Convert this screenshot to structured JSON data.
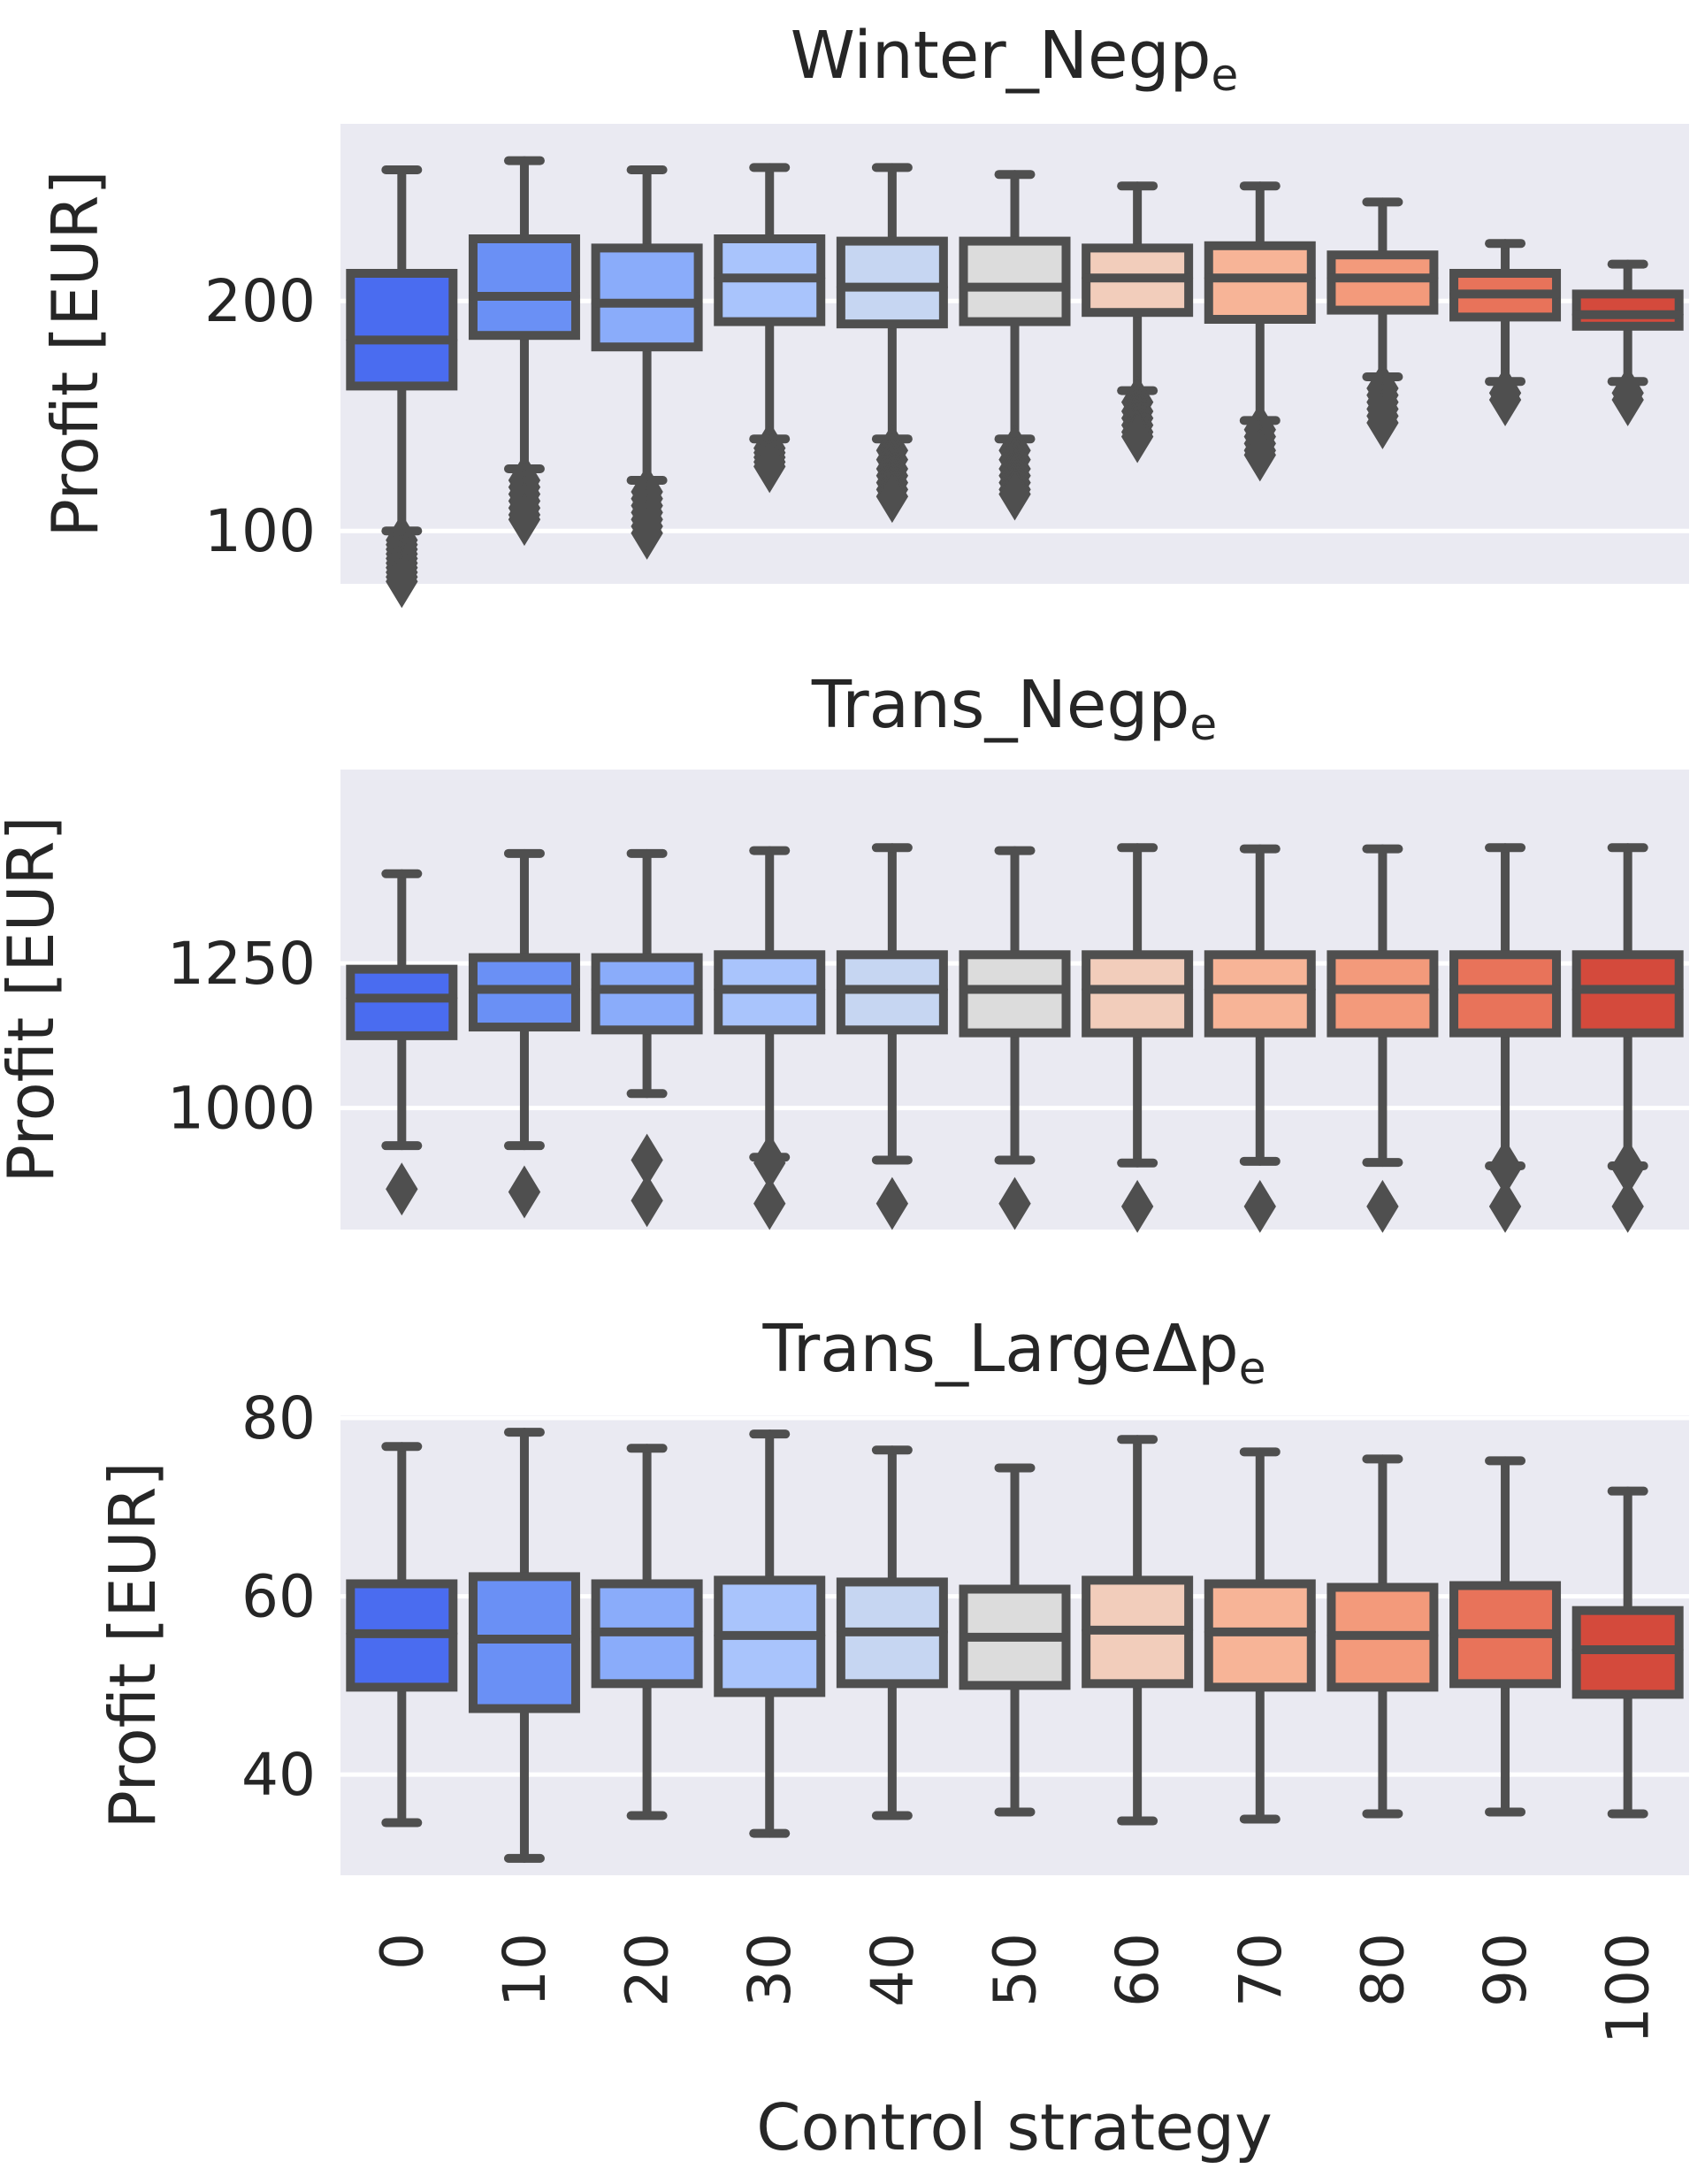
{
  "chart_data": [
    {
      "type": "box",
      "title": "Winter_Negp",
      "title_subscript": "e",
      "ylabel": "Profit [EUR]",
      "ylim": [
        77,
        277
      ],
      "yticks": [
        100,
        200
      ],
      "grid": true,
      "categories": [
        "0",
        "10",
        "20",
        "30",
        "40",
        "50",
        "60",
        "70",
        "80",
        "90",
        "100"
      ],
      "boxes": [
        {
          "category": "0",
          "whislo": 100,
          "q1": 163,
          "median": 183,
          "q3": 212,
          "whishi": 257,
          "fliers": [
            96,
            94,
            92,
            90,
            88,
            86,
            84,
            82,
            80,
            78
          ]
        },
        {
          "category": "10",
          "whislo": 127,
          "q1": 185,
          "median": 202,
          "q3": 227,
          "whishi": 261,
          "fliers": [
            122,
            119,
            116,
            113,
            110,
            107,
            105
          ]
        },
        {
          "category": "20",
          "whislo": 122,
          "q1": 180,
          "median": 199,
          "q3": 223,
          "whishi": 257,
          "fliers": [
            117,
            114,
            111,
            108,
            105,
            102,
            99
          ]
        },
        {
          "category": "30",
          "whislo": 140,
          "q1": 191,
          "median": 210,
          "q3": 227,
          "whishi": 258,
          "fliers": [
            136,
            134,
            132,
            130,
            128
          ]
        },
        {
          "category": "40",
          "whislo": 140,
          "q1": 190,
          "median": 206,
          "q3": 226,
          "whishi": 258,
          "fliers": [
            135,
            131,
            127,
            124,
            121,
            118,
            115
          ]
        },
        {
          "category": "50",
          "whislo": 140,
          "q1": 191,
          "median": 206,
          "q3": 226,
          "whishi": 255,
          "fliers": [
            135,
            131,
            127,
            124,
            121,
            118,
            116
          ]
        },
        {
          "category": "60",
          "whislo": 161,
          "q1": 195,
          "median": 210,
          "q3": 223,
          "whishi": 250,
          "fliers": [
            156,
            152,
            149,
            146,
            143,
            141
          ]
        },
        {
          "category": "70",
          "whislo": 148,
          "q1": 192,
          "median": 210,
          "q3": 224,
          "whishi": 250,
          "fliers": [
            144,
            141,
            138,
            135,
            133
          ]
        },
        {
          "category": "80",
          "whislo": 167,
          "q1": 196,
          "median": 210,
          "q3": 220,
          "whishi": 243,
          "fliers": [
            162,
            159,
            156,
            153,
            150,
            147
          ]
        },
        {
          "category": "90",
          "whislo": 165,
          "q1": 193,
          "median": 203,
          "q3": 212,
          "whishi": 225,
          "fliers": [
            160,
            157
          ]
        },
        {
          "category": "100",
          "whislo": 165,
          "q1": 189,
          "median": 194,
          "q3": 203,
          "whishi": 216,
          "fliers": [
            160,
            157
          ]
        }
      ]
    },
    {
      "type": "box",
      "title": "Trans_Negp",
      "title_subscript": "e",
      "ylabel": "Profit [EUR]",
      "ylim": [
        790,
        1585
      ],
      "yticks": [
        1000,
        1250
      ],
      "grid": true,
      "categories": [
        "0",
        "10",
        "20",
        "30",
        "40",
        "50",
        "60",
        "70",
        "80",
        "90",
        "100"
      ],
      "boxes": [
        {
          "category": "0",
          "whislo": 935,
          "q1": 1125,
          "median": 1190,
          "q3": 1240,
          "whishi": 1405,
          "fliers": [
            860
          ]
        },
        {
          "category": "10",
          "whislo": 935,
          "q1": 1140,
          "median": 1205,
          "q3": 1260,
          "whishi": 1440,
          "fliers": [
            855
          ]
        },
        {
          "category": "20",
          "whislo": 1025,
          "q1": 1135,
          "median": 1205,
          "q3": 1260,
          "whishi": 1440,
          "fliers": [
            910,
            840
          ]
        },
        {
          "category": "30",
          "whislo": 915,
          "q1": 1135,
          "median": 1205,
          "q3": 1265,
          "whishi": 1445,
          "fliers": [
            910,
            905,
            835
          ]
        },
        {
          "category": "40",
          "whislo": 910,
          "q1": 1135,
          "median": 1205,
          "q3": 1265,
          "whishi": 1450,
          "fliers": [
            835
          ]
        },
        {
          "category": "50",
          "whislo": 910,
          "q1": 1130,
          "median": 1205,
          "q3": 1265,
          "whishi": 1445,
          "fliers": [
            835
          ]
        },
        {
          "category": "60",
          "whislo": 905,
          "q1": 1130,
          "median": 1205,
          "q3": 1265,
          "whishi": 1450,
          "fliers": [
            830
          ]
        },
        {
          "category": "70",
          "whislo": 908,
          "q1": 1130,
          "median": 1205,
          "q3": 1265,
          "whishi": 1448,
          "fliers": [
            830
          ]
        },
        {
          "category": "80",
          "whislo": 906,
          "q1": 1130,
          "median": 1205,
          "q3": 1265,
          "whishi": 1448,
          "fliers": [
            830
          ]
        },
        {
          "category": "90",
          "whislo": 900,
          "q1": 1130,
          "median": 1205,
          "q3": 1265,
          "whishi": 1450,
          "fliers": [
            900,
            895,
            830
          ]
        },
        {
          "category": "100",
          "whislo": 900,
          "q1": 1130,
          "median": 1205,
          "q3": 1265,
          "whishi": 1450,
          "fliers": [
            900,
            895,
            830
          ]
        }
      ]
    },
    {
      "type": "box",
      "title": "Trans_LargeΔp",
      "title_subscript": "e",
      "ylabel": "Profit [EUR]",
      "ylim": [
        28.7,
        80.3
      ],
      "yticks": [
        40,
        60,
        80
      ],
      "grid": true,
      "xlabel": "Control strategy",
      "categories": [
        "0",
        "10",
        "20",
        "30",
        "40",
        "50",
        "60",
        "70",
        "80",
        "90",
        "100"
      ],
      "boxes": [
        {
          "category": "0",
          "whislo": 34.6,
          "q1": 49.8,
          "median": 55.8,
          "q3": 61.4,
          "whishi": 76.8,
          "fliers": []
        },
        {
          "category": "10",
          "whislo": 30.6,
          "q1": 47.4,
          "median": 55.2,
          "q3": 62.2,
          "whishi": 78.4,
          "fliers": []
        },
        {
          "category": "20",
          "whislo": 35.4,
          "q1": 50.2,
          "median": 56.0,
          "q3": 61.4,
          "whishi": 76.6,
          "fliers": []
        },
        {
          "category": "30",
          "whislo": 33.4,
          "q1": 49.2,
          "median": 55.6,
          "q3": 61.8,
          "whishi": 78.2,
          "fliers": []
        },
        {
          "category": "40",
          "whislo": 35.4,
          "q1": 50.2,
          "median": 56.0,
          "q3": 61.6,
          "whishi": 76.4,
          "fliers": []
        },
        {
          "category": "50",
          "whislo": 35.8,
          "q1": 50.0,
          "median": 55.4,
          "q3": 60.8,
          "whishi": 74.4,
          "fliers": []
        },
        {
          "category": "60",
          "whislo": 34.8,
          "q1": 50.2,
          "median": 56.2,
          "q3": 61.8,
          "whishi": 77.6,
          "fliers": []
        },
        {
          "category": "70",
          "whislo": 35.0,
          "q1": 49.8,
          "median": 56.0,
          "q3": 61.4,
          "whishi": 76.2,
          "fliers": []
        },
        {
          "category": "80",
          "whislo": 35.6,
          "q1": 49.8,
          "median": 55.6,
          "q3": 61.0,
          "whishi": 75.4,
          "fliers": []
        },
        {
          "category": "90",
          "whislo": 35.8,
          "q1": 50.2,
          "median": 55.8,
          "q3": 61.2,
          "whishi": 75.2,
          "fliers": []
        },
        {
          "category": "100",
          "whislo": 35.6,
          "q1": 49.0,
          "median": 54.0,
          "q3": 58.4,
          "whishi": 71.8,
          "fliers": []
        }
      ]
    }
  ],
  "palette": [
    "#4A6CF0",
    "#6A90F5",
    "#8AACFA",
    "#A9C4FC",
    "#C6D6F2",
    "#DCDCDC",
    "#F2CDBB",
    "#F7B497",
    "#F39A7B",
    "#E8735A",
    "#D44A3C"
  ]
}
